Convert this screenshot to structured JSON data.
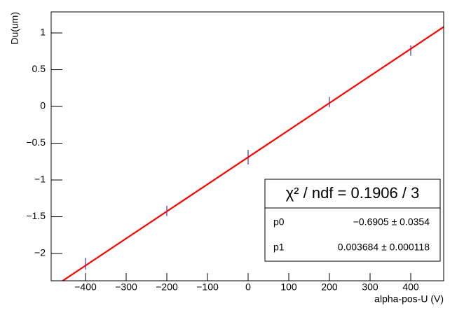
{
  "chart_data": {
    "type": "errorbar",
    "y_label": "Du(um)",
    "x_label": "alpha-pos-U (V)",
    "x": [
      -400,
      -200,
      0,
      200,
      400
    ],
    "values": [
      -2.14,
      -1.42,
      -0.69,
      0.06,
      0.76
    ],
    "errors": [
      0.08,
      0.07,
      0.1,
      0.07,
      0.07
    ],
    "color": "#6a5acd",
    "xlim": [
      -484.5,
      481
    ],
    "ylim": [
      -2.371,
      1.286
    ],
    "xticks": [
      {
        "value": -400,
        "label": "−400"
      },
      {
        "value": -300,
        "label": "−300"
      },
      {
        "value": -200,
        "label": "−200"
      },
      {
        "value": -100,
        "label": "−100"
      },
      0,
      100,
      200,
      300,
      400
    ],
    "yticks": [
      {
        "value": -2,
        "label": "−2"
      },
      {
        "value": -1.5,
        "label": "−1.5"
      },
      {
        "value": -1,
        "label": "−1"
      },
      {
        "value": -0.5,
        "label": "−0.5"
      },
      0,
      0.5,
      1
    ],
    "fit": {
      "color": "#ff0000",
      "stats_title": "χ² / ndf = 0.1906 / 3",
      "p0": {
        "name": "p0",
        "value": -0.6905,
        "error": 0.0354,
        "label": "−0.6905 ± 0.0354"
      },
      "p1": {
        "name": "p1",
        "value": 0.003684,
        "error": 0.000118,
        "label": "0.003684 ± 0.000118"
      }
    }
  }
}
